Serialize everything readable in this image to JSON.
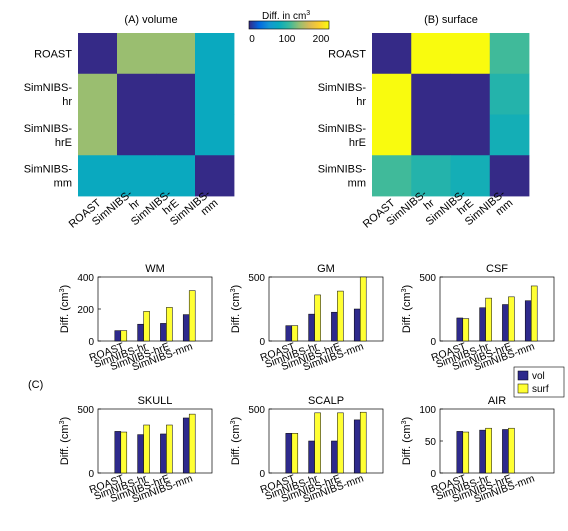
{
  "colorbar": {
    "label": "Diff. in cm",
    "label_sup": "3",
    "ticks": [
      "0",
      "100",
      "200"
    ],
    "range": [
      0,
      235
    ]
  },
  "colormap": [
    "#352a87",
    "#0268e1",
    "#1496d4",
    "#09abbd",
    "#38b99e",
    "#92bf73",
    "#d9ba56",
    "#fcce2e",
    "#f9fb0e"
  ],
  "bar_colors": {
    "vol": "#2e2a8c",
    "surf": "#ffff33"
  },
  "panel_label": "(C)",
  "chart_data": [
    {
      "type": "heatmap",
      "title": "(A) volume",
      "row_labels": [
        [
          "ROAST"
        ],
        [
          "SimNIBS-",
          "hr"
        ],
        [
          "SimNIBS-",
          "hrE"
        ],
        [
          "SimNIBS-",
          "mm"
        ]
      ],
      "col_labels": [
        "ROAST",
        "SimNIBS-hr",
        "SimNIBS-hrE",
        "SimNIBS-mm"
      ],
      "col_label_lines": [
        [
          "ROAST"
        ],
        [
          "SimNIBS-",
          "hr"
        ],
        [
          "SimNIBS-",
          "hrE"
        ],
        [
          "SimNIBS-",
          "mm"
        ]
      ],
      "values": [
        [
          0,
          150,
          150,
          85
        ],
        [
          150,
          0,
          0,
          85
        ],
        [
          150,
          0,
          0,
          85
        ],
        [
          85,
          85,
          85,
          0
        ]
      ]
    },
    {
      "type": "heatmap",
      "title": "(B) surface",
      "row_labels": [
        [
          "ROAST"
        ],
        [
          "SimNIBS-",
          "hr"
        ],
        [
          "SimNIBS-",
          "hrE"
        ],
        [
          "SimNIBS-",
          "mm"
        ]
      ],
      "col_labels": [
        "ROAST",
        "SimNIBS-hr",
        "SimNIBS-hrE",
        "SimNIBS-mm"
      ],
      "col_label_lines": [
        [
          "ROAST"
        ],
        [
          "SimNIBS-",
          "hr"
        ],
        [
          "SimNIBS-",
          "hrE"
        ],
        [
          "SimNIBS-",
          "mm"
        ]
      ],
      "values": [
        [
          0,
          235,
          235,
          120
        ],
        [
          235,
          0,
          0,
          105
        ],
        [
          235,
          0,
          0,
          95
        ],
        [
          120,
          105,
          95,
          0
        ]
      ]
    },
    {
      "type": "bar",
      "title": "WM",
      "ylabel": "Diff. (cm",
      "categories": [
        "ROAST",
        "SimNIBS-hr",
        "SimNIBS-hrE",
        "SimNIBS-mm"
      ],
      "ylim": [
        0,
        400
      ],
      "yticks": [
        "0",
        "200",
        "400"
      ],
      "series": [
        {
          "name": "vol",
          "values": [
            65,
            105,
            110,
            165
          ]
        },
        {
          "name": "surf",
          "values": [
            65,
            185,
            210,
            315
          ]
        }
      ]
    },
    {
      "type": "bar",
      "title": "GM",
      "ylabel": "Diff. (cm",
      "categories": [
        "ROAST",
        "SimNIBS-hr",
        "SimNIBS-hrE",
        "SimNIBS-mm"
      ],
      "ylim": [
        0,
        500
      ],
      "yticks": [
        "0",
        "500"
      ],
      "series": [
        {
          "name": "vol",
          "values": [
            120,
            210,
            225,
            250
          ]
        },
        {
          "name": "surf",
          "values": [
            120,
            360,
            390,
            500
          ]
        }
      ]
    },
    {
      "type": "bar",
      "title": "CSF",
      "ylabel": "Diff. (cm",
      "categories": [
        "ROAST",
        "SimNIBS-hr",
        "SimNIBS-hrE",
        "SimNIBS-mm"
      ],
      "ylim": [
        0,
        500
      ],
      "yticks": [
        "0",
        "500"
      ],
      "series": [
        {
          "name": "vol",
          "values": [
            180,
            260,
            285,
            315
          ]
        },
        {
          "name": "surf",
          "values": [
            175,
            335,
            345,
            430
          ]
        }
      ]
    },
    {
      "type": "bar",
      "title": "SKULL",
      "ylabel": "Diff. (cm",
      "categories": [
        "ROAST",
        "SimNIBS-hr",
        "SimNIBS-hrE",
        "SimNIBS-mm"
      ],
      "ylim": [
        0,
        500
      ],
      "yticks": [
        "0",
        "500"
      ],
      "series": [
        {
          "name": "vol",
          "values": [
            325,
            300,
            305,
            430
          ]
        },
        {
          "name": "surf",
          "values": [
            320,
            375,
            375,
            460
          ]
        }
      ]
    },
    {
      "type": "bar",
      "title": "SCALP",
      "ylabel": "Diff. (cm",
      "categories": [
        "ROAST",
        "SimNIBS-hr",
        "SimNIBS-hrE",
        "SimNIBS-mm"
      ],
      "ylim": [
        0,
        500
      ],
      "yticks": [
        "0",
        "500"
      ],
      "series": [
        {
          "name": "vol",
          "values": [
            310,
            250,
            250,
            415
          ]
        },
        {
          "name": "surf",
          "values": [
            310,
            470,
            470,
            475
          ]
        }
      ]
    },
    {
      "type": "bar",
      "title": "AIR",
      "ylabel": "Diff. (cm",
      "categories": [
        "ROAST",
        "SimNIBS-hr",
        "SimNIBS-hrE",
        "SimNIBS-mm"
      ],
      "ylim": [
        0,
        100
      ],
      "yticks": [
        "0",
        "50",
        "100"
      ],
      "series": [
        {
          "name": "vol",
          "values": [
            65,
            67,
            68,
            0
          ]
        },
        {
          "name": "surf",
          "values": [
            64,
            70,
            70,
            0
          ]
        }
      ]
    }
  ],
  "legend": {
    "placement": "right",
    "entries": [
      "vol",
      "surf"
    ]
  }
}
